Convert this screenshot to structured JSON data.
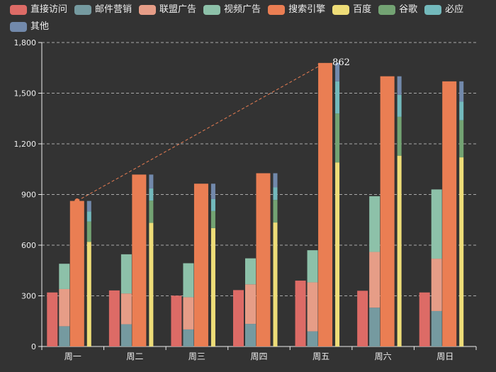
{
  "chart_data": {
    "type": "bar",
    "categories": [
      "周一",
      "周二",
      "周三",
      "周四",
      "周五",
      "周六",
      "周日"
    ],
    "ylim": [
      0,
      1800
    ],
    "yticks": [
      0,
      300,
      600,
      900,
      1200,
      1500,
      1800
    ],
    "ytick_labels": [
      "0",
      "300",
      "600",
      "900",
      "1,200",
      "1,500",
      "1,800"
    ],
    "grid": true,
    "legend_position": "top-left",
    "series": [
      {
        "name": "直接访问",
        "color": "#dd6b66",
        "values": [
          320,
          332,
          301,
          334,
          390,
          330,
          320
        ]
      },
      {
        "name": "邮件营销",
        "color": "#759aa0",
        "values": [
          120,
          132,
          101,
          134,
          90,
          230,
          210
        ]
      },
      {
        "name": "联盟广告",
        "color": "#e69d87",
        "values": [
          220,
          182,
          191,
          234,
          290,
          330,
          310
        ]
      },
      {
        "name": "视频广告",
        "color": "#8dc1a9",
        "values": [
          150,
          232,
          201,
          154,
          190,
          330,
          410
        ]
      },
      {
        "name": "搜索引擎",
        "color": "#ea7e53",
        "values": [
          862,
          1018,
          964,
          1026,
          1679,
          1600,
          1570
        ]
      },
      {
        "name": "百度",
        "color": "#eedd78",
        "values": [
          620,
          732,
          701,
          734,
          1090,
          1130,
          1120
        ]
      },
      {
        "name": "谷歌",
        "color": "#73a373",
        "values": [
          120,
          132,
          101,
          134,
          290,
          230,
          220
        ]
      },
      {
        "name": "必应",
        "color": "#73b9bc",
        "values": [
          60,
          72,
          71,
          74,
          190,
          130,
          110
        ]
      },
      {
        "name": "其他",
        "color": "#7289ab",
        "values": [
          62,
          82,
          91,
          84,
          109,
          110,
          120
        ]
      }
    ],
    "stack_groups": [
      [
        "直接访问"
      ],
      [
        "邮件营销",
        "联盟广告",
        "视频广告"
      ],
      [
        "搜索引擎"
      ],
      [
        "百度",
        "谷歌",
        "必应",
        "其他"
      ]
    ],
    "annotation": {
      "from_category": "周一",
      "to_category": "周五",
      "series": "搜索引擎",
      "label": "862"
    }
  }
}
